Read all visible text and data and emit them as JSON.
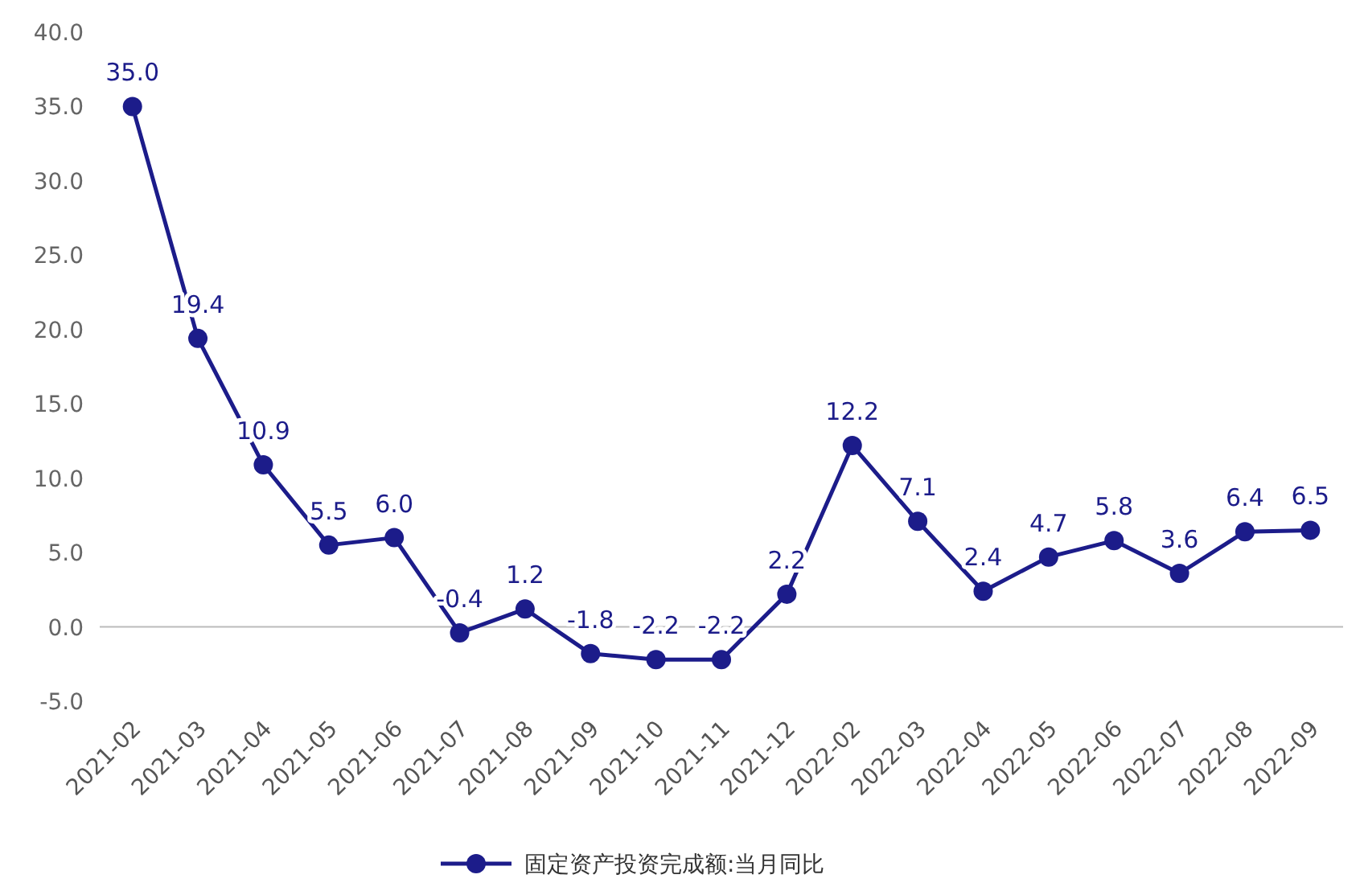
{
  "chart_data": {
    "type": "line",
    "categories": [
      "2021-02",
      "2021-03",
      "2021-04",
      "2021-05",
      "2021-06",
      "2021-07",
      "2021-08",
      "2021-09",
      "2021-10",
      "2021-11",
      "2021-12",
      "2022-02",
      "2022-03",
      "2022-04",
      "2022-05",
      "2022-06",
      "2022-07",
      "2022-08",
      "2022-09"
    ],
    "series": [
      {
        "name": "固定资产投资完成额:当月同比",
        "color": "#1c1c8a",
        "values": [
          35.0,
          19.4,
          10.9,
          5.5,
          6.0,
          -0.4,
          1.2,
          -1.8,
          -2.2,
          -2.2,
          2.2,
          12.2,
          7.1,
          2.4,
          4.7,
          5.8,
          3.6,
          6.4,
          6.5
        ],
        "value_labels": [
          "35.0",
          "19.4",
          "10.9",
          "5.5",
          "6.0",
          "-0.4",
          "1.2",
          "-1.8",
          "-2.2",
          "-2.2",
          "2.2",
          "12.2",
          "7.1",
          "2.4",
          "4.7",
          "5.8",
          "3.6",
          "6.4",
          "6.5"
        ]
      }
    ],
    "ylim": [
      -5,
      40
    ],
    "yticks": [
      {
        "value": -5,
        "label": "-5.0"
      },
      {
        "value": 0,
        "label": "0.0"
      },
      {
        "value": 5,
        "label": "5.0"
      },
      {
        "value": 10,
        "label": "10.0"
      },
      {
        "value": 15,
        "label": "15.0"
      },
      {
        "value": 20,
        "label": "20.0"
      },
      {
        "value": 25,
        "label": "25.0"
      },
      {
        "value": 30,
        "label": "30.0"
      },
      {
        "value": 35,
        "label": "35.0"
      },
      {
        "value": 40,
        "label": "40.0"
      }
    ],
    "ref_lines": [
      {
        "axis": "y",
        "value": 0,
        "color": "#bbbbbb"
      }
    ],
    "marker": "circle",
    "legend": "bottom"
  }
}
